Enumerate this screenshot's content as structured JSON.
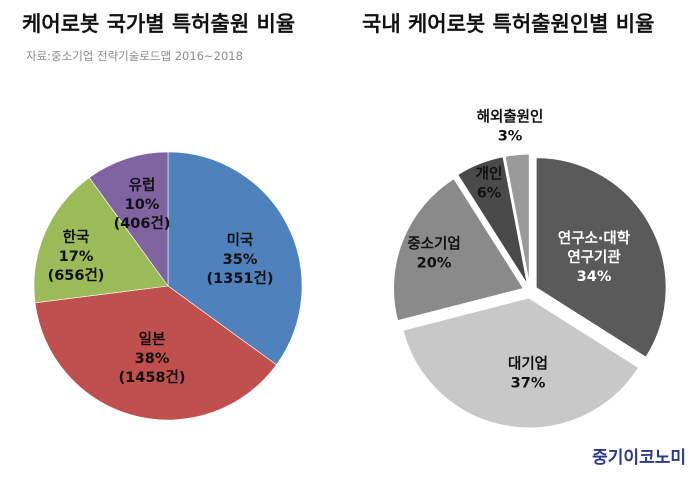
{
  "page": {
    "brand": "중기이코노미"
  },
  "chart_data": [
    {
      "type": "pie",
      "title": "케어로봇 국가별 특허출원 비율",
      "subtitle": "자료:중소기업 전략기술로드맵 2016~2018",
      "start_angle_deg": 0,
      "slices": [
        {
          "label": "미국",
          "value": 35,
          "percent_text": "35%",
          "count_text": "(1351건)",
          "color": "#4f81bd"
        },
        {
          "label": "일본",
          "value": 38,
          "percent_text": "38%",
          "count_text": "(1458건)",
          "color": "#c0504d"
        },
        {
          "label": "한국",
          "value": 17,
          "percent_text": "17%",
          "count_text": "(656건)",
          "color": "#9bbb59"
        },
        {
          "label": "유럽",
          "value": 10,
          "percent_text": "10%",
          "count_text": "(406건)",
          "color": "#8064a2"
        }
      ]
    },
    {
      "type": "pie",
      "title": "국내 케어로봇 특허출원인별 비율",
      "start_angle_deg": 0,
      "exploded": true,
      "slices": [
        {
          "label": "연구소·대학\n연구기관",
          "value": 34,
          "percent_text": "34%",
          "color": "#5a5a5a",
          "text_color": "#ffffff"
        },
        {
          "label": "대기업",
          "value": 37,
          "percent_text": "37%",
          "color": "#c8c8c8",
          "text_color": "#111111"
        },
        {
          "label": "중소기업",
          "value": 20,
          "percent_text": "20%",
          "color": "#8a8a8a",
          "text_color": "#111111"
        },
        {
          "label": "개인",
          "value": 6,
          "percent_text": "6%",
          "color": "#4a4a4a",
          "text_color": "#111111"
        },
        {
          "label": "해외출원인",
          "value": 3,
          "percent_text": "3%",
          "color": "#9a9a9a",
          "text_color": "#111111"
        }
      ]
    }
  ]
}
